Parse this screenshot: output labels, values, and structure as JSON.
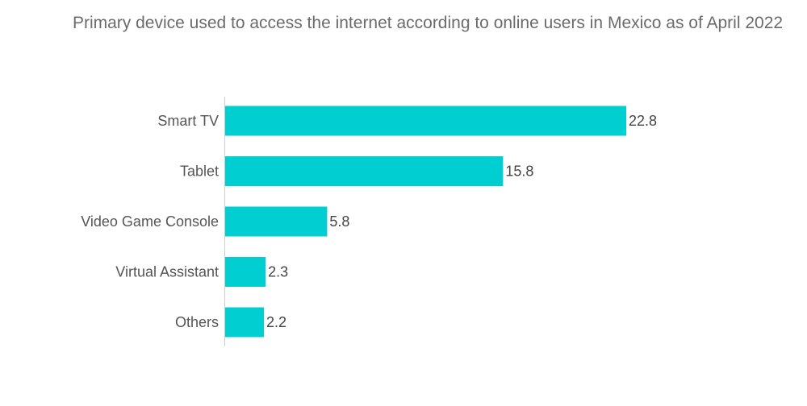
{
  "chart_data": {
    "type": "bar",
    "orientation": "horizontal",
    "title": "Primary device used to access the internet according to online users in Mexico as of April 2022",
    "xlabel": "",
    "ylabel": "",
    "categories": [
      "Smart TV",
      "Tablet",
      "Video Game Console",
      "Virtual Assistant",
      "Others"
    ],
    "values": [
      22.8,
      15.8,
      5.8,
      2.3,
      2.2
    ],
    "value_labels": [
      "22.8",
      "15.8",
      "5.8",
      "2.3",
      "2.2"
    ],
    "xlim": [
      0,
      22.8
    ],
    "grid": false,
    "legend": "none",
    "bar_color": "#00CED1"
  }
}
